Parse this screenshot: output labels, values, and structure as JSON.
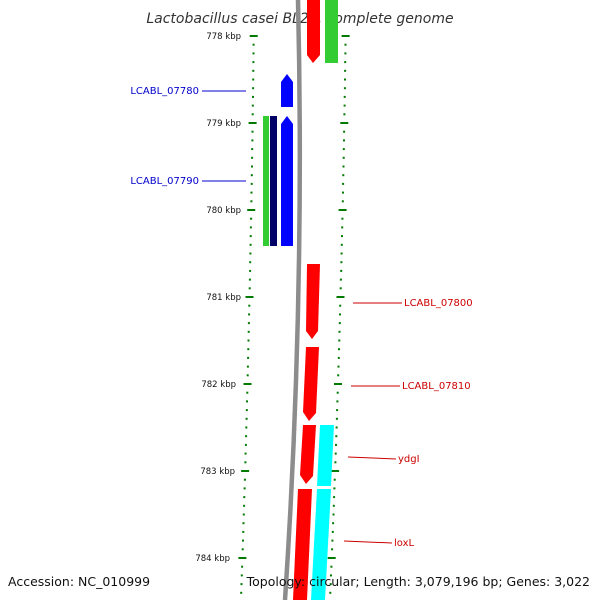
{
  "header": {
    "title": "Lactobacillus casei BL23, complete genome"
  },
  "footer": {
    "accession": "Accession: NC_010999",
    "summary": "Topology: circular; Length: 3,079,196 bp; Genes: 3,022"
  },
  "colors": {
    "backbone": "#8c8c8c",
    "forward_cds": "#ff0000",
    "reverse_cds": "#0000ff",
    "green_feature": "#33cc33",
    "cyan_feature": "#00ffff",
    "dark_feature": "#000066",
    "ticks": "#007a00",
    "label_left": "#0000cc",
    "label_right": "#cc0000"
  },
  "kbp_marks": [
    "778 kbp",
    "779 kbp",
    "780 kbp",
    "781 kbp",
    "782 kbp",
    "783 kbp",
    "784 kbp"
  ],
  "gene_labels": [
    {
      "text": "LCABL_07780",
      "side": "left"
    },
    {
      "text": "LCABL_07790",
      "side": "left"
    },
    {
      "text": "LCABL_07800",
      "side": "right"
    },
    {
      "text": "LCABL_07810",
      "side": "right"
    },
    {
      "text": "ydgI",
      "side": "right"
    },
    {
      "text": "loxL",
      "side": "right"
    }
  ]
}
